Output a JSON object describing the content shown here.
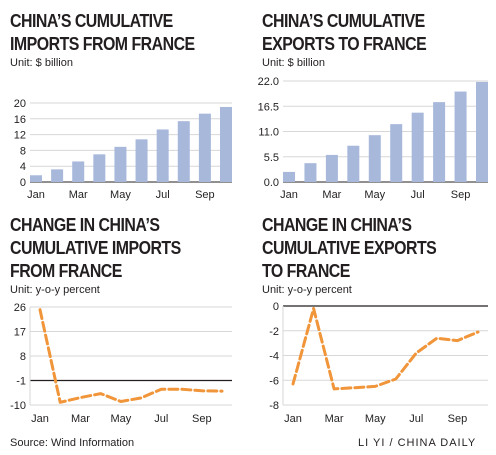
{
  "charts": [
    {
      "title_lines": [
        "CHINA’S CUMULATIVE",
        "IMPORTS FROM FRANCE"
      ],
      "unit": "Unit: $ billion"
    },
    {
      "title_lines": [
        "CHINA’S CUMULATIVE",
        "EXPORTS TO FRANCE"
      ],
      "unit": "Unit: $ billion"
    },
    {
      "title_lines": [
        "CHANGE IN CHINA’S",
        "CUMULATIVE IMPORTS",
        "FROM FRANCE"
      ],
      "unit": "Unit: y-o-y percent"
    },
    {
      "title_lines": [
        "CHANGE IN CHINA’S",
        "CUMULATIVE EXPORTS",
        "TO FRANCE"
      ],
      "unit": "Unit: y-o-y percent"
    }
  ],
  "chart_data": [
    {
      "type": "bar",
      "title": "CHINA’S CUMULATIVE IMPORTS FROM FRANCE",
      "ylabel": "Unit: $ billion",
      "categories": [
        "Jan",
        "Feb",
        "Mar",
        "Apr",
        "May",
        "Jun",
        "Jul",
        "Aug",
        "Sep",
        "Oct"
      ],
      "x_tick_labels": [
        "Jan",
        "Mar",
        "May",
        "Jul",
        "Sep"
      ],
      "values": [
        1.7,
        3.2,
        5.2,
        7.0,
        8.9,
        10.8,
        13.3,
        15.4,
        17.3,
        19.0
      ],
      "y_ticks": [
        0,
        4,
        8,
        12,
        16,
        20
      ],
      "ylim": [
        0,
        20
      ],
      "grid": true,
      "bar_color": "#a7b8db",
      "grid_color": "#d7d7d7"
    },
    {
      "type": "bar",
      "title": "CHINA’S CUMULATIVE EXPORTS TO FRANCE",
      "ylabel": "Unit: $ billion",
      "categories": [
        "Jan",
        "Feb",
        "Mar",
        "Apr",
        "May",
        "Jun",
        "Jul",
        "Aug",
        "Sep",
        "Oct"
      ],
      "x_tick_labels": [
        "Jan",
        "Mar",
        "May",
        "Jul",
        "Sep"
      ],
      "values": [
        2.2,
        4.1,
        5.9,
        7.9,
        10.2,
        12.6,
        15.1,
        17.4,
        19.7,
        21.8
      ],
      "y_ticks": [
        0.0,
        5.5,
        11.0,
        16.5,
        22.0
      ],
      "y_tick_labels": [
        "0.0",
        "5.5",
        "11.0",
        "16.5",
        "22.0"
      ],
      "ylim": [
        0,
        22
      ],
      "grid": true,
      "bar_color": "#a7b8db",
      "grid_color": "#d7d7d7"
    },
    {
      "type": "line",
      "title": "CHANGE IN CHINA’S CUMULATIVE IMPORTS FROM FRANCE",
      "ylabel": "Unit: y-o-y percent",
      "categories": [
        "Jan",
        "Feb",
        "Mar",
        "Apr",
        "May",
        "Jun",
        "Jul",
        "Aug",
        "Sep",
        "Oct"
      ],
      "x_tick_labels": [
        "Jan",
        "Mar",
        "May",
        "Jul",
        "Sep"
      ],
      "values": [
        25.0,
        -9.0,
        -7.3,
        -5.8,
        -8.7,
        -7.4,
        -4.2,
        -4.2,
        -4.8,
        -4.9
      ],
      "y_ticks": [
        -10,
        -1,
        8,
        17,
        26
      ],
      "ylim": [
        -10,
        26
      ],
      "zero_line": -1,
      "grid": true,
      "line_color": "#f0953a",
      "grid_color": "#d7d7d7"
    },
    {
      "type": "line",
      "title": "CHANGE IN CHINA’S CUMULATIVE EXPORTS TO FRANCE",
      "ylabel": "Unit: y-o-y percent",
      "categories": [
        "Jan",
        "Feb",
        "Mar",
        "Apr",
        "May",
        "Jun",
        "Jul",
        "Aug",
        "Sep",
        "Oct"
      ],
      "x_tick_labels": [
        "Jan",
        "Mar",
        "May",
        "Jul",
        "Sep"
      ],
      "values": [
        -6.3,
        -0.2,
        -6.7,
        -6.6,
        -6.5,
        -5.9,
        -3.8,
        -2.6,
        -2.8,
        -2.1
      ],
      "y_ticks": [
        -8,
        -6,
        -4,
        -2,
        0
      ],
      "ylim": [
        -8,
        0
      ],
      "zero_line": 0,
      "grid": true,
      "line_color": "#f0953a",
      "grid_color": "#d7d7d7"
    }
  ],
  "footer": {
    "source": "Source: Wind Information",
    "credit": "LI YI / CHINA DAILY"
  }
}
